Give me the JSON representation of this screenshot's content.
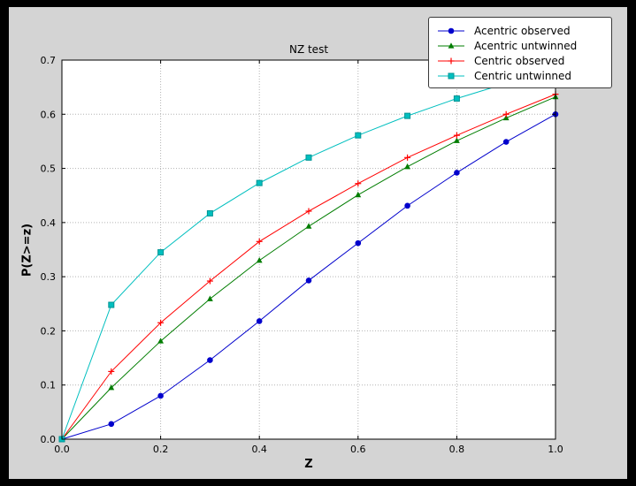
{
  "figure": {
    "background": "#000000",
    "canvas_color": "#d4d4d4",
    "plot_bg": "#ffffff",
    "grid_color": "#b3b3b3",
    "frame_color": "#000000"
  },
  "chart_data": {
    "type": "line",
    "title": "NZ test",
    "xlabel": "Z",
    "ylabel": "P(Z>=z)",
    "xlim": [
      0.0,
      1.0
    ],
    "ylim": [
      0.0,
      0.7
    ],
    "xticks": [
      0.0,
      0.2,
      0.4,
      0.6,
      0.8,
      1.0
    ],
    "yticks": [
      0.0,
      0.1,
      0.2,
      0.3,
      0.4,
      0.5,
      0.6,
      0.7
    ],
    "grid": true,
    "grid_style": "dotted",
    "legend_position": "upper right",
    "x": [
      0.0,
      0.1,
      0.2,
      0.3,
      0.4,
      0.5,
      0.6,
      0.7,
      0.8,
      0.9,
      1.0
    ],
    "series": [
      {
        "name": "Acentric observed",
        "color": "#0000cc",
        "marker": "circle",
        "values": [
          0.0,
          0.028,
          0.08,
          0.146,
          0.218,
          0.293,
          0.362,
          0.431,
          0.492,
          0.549,
          0.6
        ]
      },
      {
        "name": "Acentric untwinned",
        "color": "#007d00",
        "marker": "triangle",
        "values": [
          0.0,
          0.095,
          0.181,
          0.259,
          0.33,
          0.393,
          0.451,
          0.503,
          0.551,
          0.593,
          0.632
        ]
      },
      {
        "name": "Centric observed",
        "color": "#ff0000",
        "marker": "plus",
        "values": [
          0.0,
          0.125,
          0.215,
          0.292,
          0.365,
          0.421,
          0.472,
          0.52,
          0.561,
          0.6,
          0.637
        ]
      },
      {
        "name": "Centric untwinned",
        "color": "#00bfbf",
        "marker": "square",
        "marker_edge": "#009494",
        "values": [
          0.0,
          0.248,
          0.345,
          0.417,
          0.473,
          0.52,
          0.561,
          0.597,
          0.629,
          0.657,
          0.683
        ]
      }
    ]
  }
}
